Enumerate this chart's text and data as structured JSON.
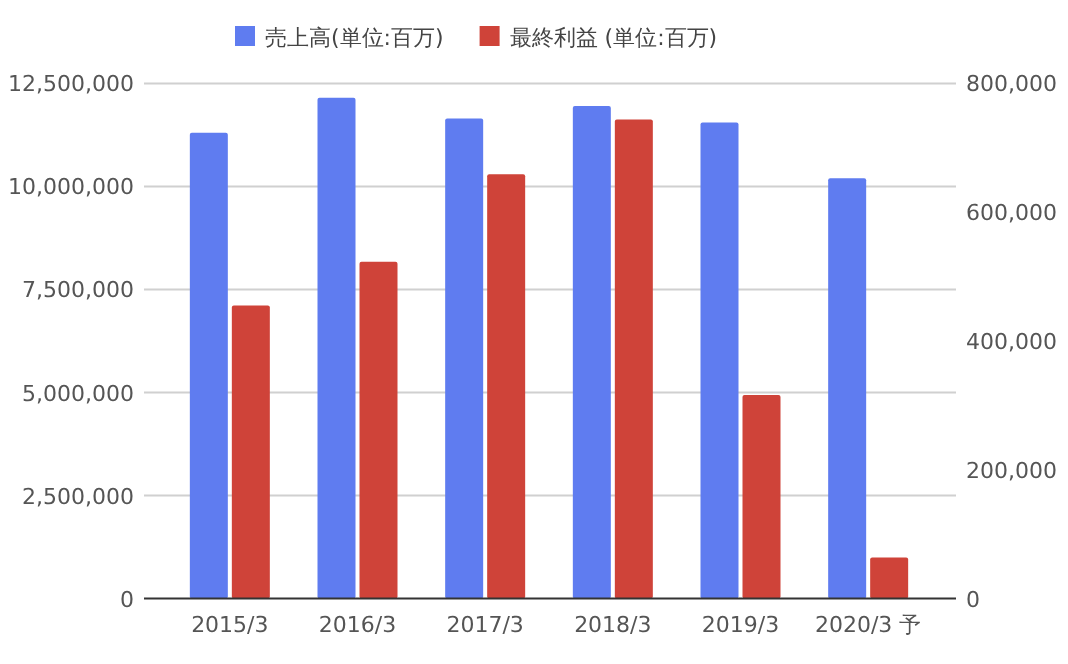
{
  "chart_data": {
    "type": "bar",
    "categories": [
      "2015/3",
      "2016/3",
      "2017/3",
      "2018/3",
      "2019/3",
      "2020/3 予"
    ],
    "series": [
      {
        "name": "売上高(単位:百万)",
        "color": "#5f7cf0",
        "values": [
          11300000,
          12150000,
          11650000,
          11950000,
          11550000,
          10200000
        ]
      },
      {
        "name": "最終利益 (単位:百万)",
        "color": "#cf4339",
        "axis": "y2",
        "values": [
          455000,
          523000,
          659000,
          744000,
          316000,
          64000
        ]
      }
    ],
    "ylim": [
      0,
      12500000
    ],
    "yticks": [
      {
        "value": 0,
        "label": "0"
      },
      {
        "value": 2500000,
        "label": "2,500,000"
      },
      {
        "value": 5000000,
        "label": "5,000,000"
      },
      {
        "value": 7500000,
        "label": "7,500,000"
      },
      {
        "value": 10000000,
        "label": "10,000,000"
      },
      {
        "value": 12500000,
        "label": "12,500,000"
      }
    ],
    "y2lim": [
      0,
      800000
    ],
    "y2ticks": [
      {
        "value": 0,
        "label": "0"
      },
      {
        "value": 200000,
        "label": "200,000"
      },
      {
        "value": 400000,
        "label": "400,000"
      },
      {
        "value": 600000,
        "label": "600,000"
      },
      {
        "value": 800000,
        "label": "800,000"
      }
    ],
    "grid": "y",
    "legend": "top"
  }
}
